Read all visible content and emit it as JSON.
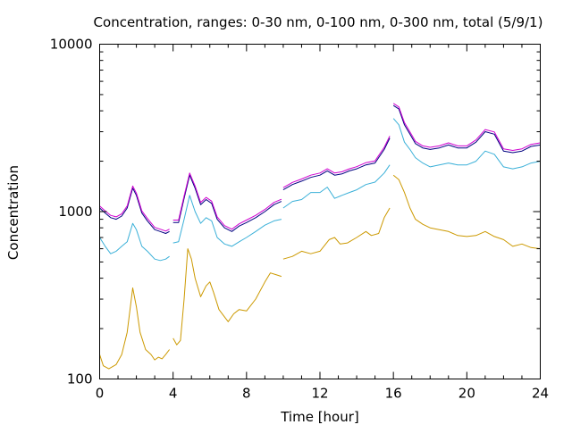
{
  "chart_data": {
    "type": "line",
    "title": "Concentration, ranges: 0-30 nm, 0-100 nm, 0-300 nm, total (5/9/1)",
    "xlabel": "Time [hour]",
    "ylabel": "Concentration",
    "xlim": [
      0,
      24
    ],
    "ylim": [
      100,
      10000
    ],
    "yscale": "log",
    "xticks": [
      0,
      4,
      8,
      12,
      16,
      20,
      24
    ],
    "xtick_labels": [
      "0",
      "4",
      "8",
      "12",
      "16",
      "20",
      "24"
    ],
    "yticks": [
      100,
      1000,
      10000
    ],
    "ytick_labels": [
      "100",
      "1000",
      "10000"
    ],
    "grid": false,
    "series": [
      {
        "color": "#cc9900",
        "segments": [
          [
            [
              0,
              140
            ],
            [
              0.2,
              120
            ],
            [
              0.5,
              115
            ],
            [
              0.9,
              122
            ],
            [
              1.2,
              140
            ],
            [
              1.5,
              190
            ],
            [
              1.8,
              350
            ],
            [
              2.0,
              270
            ],
            [
              2.2,
              190
            ],
            [
              2.5,
              150
            ],
            [
              2.8,
              140
            ],
            [
              3.0,
              130
            ],
            [
              3.2,
              135
            ],
            [
              3.4,
              132
            ],
            [
              3.6,
              140
            ],
            [
              3.8,
              150
            ]
          ],
          [
            [
              4.0,
              175
            ],
            [
              4.2,
              160
            ],
            [
              4.4,
              170
            ],
            [
              4.6,
              300
            ],
            [
              4.8,
              600
            ],
            [
              5.0,
              520
            ],
            [
              5.2,
              400
            ],
            [
              5.5,
              310
            ],
            [
              5.8,
              360
            ],
            [
              6.0,
              380
            ],
            [
              6.2,
              330
            ],
            [
              6.5,
              260
            ],
            [
              6.8,
              235
            ],
            [
              7.0,
              220
            ],
            [
              7.3,
              245
            ],
            [
              7.6,
              260
            ],
            [
              8.0,
              255
            ],
            [
              8.5,
              300
            ],
            [
              9.0,
              380
            ],
            [
              9.3,
              430
            ],
            [
              9.6,
              420
            ],
            [
              9.9,
              410
            ]
          ],
          [
            [
              10.0,
              520
            ],
            [
              10.5,
              540
            ],
            [
              11.0,
              580
            ],
            [
              11.5,
              560
            ],
            [
              12.0,
              580
            ],
            [
              12.5,
              680
            ],
            [
              12.8,
              700
            ],
            [
              13.1,
              640
            ],
            [
              13.5,
              650
            ],
            [
              14.0,
              700
            ],
            [
              14.5,
              760
            ],
            [
              14.8,
              720
            ],
            [
              15.2,
              740
            ],
            [
              15.5,
              920
            ],
            [
              15.8,
              1050
            ]
          ],
          [
            [
              16.0,
              1650
            ],
            [
              16.3,
              1550
            ],
            [
              16.6,
              1300
            ],
            [
              16.9,
              1050
            ],
            [
              17.2,
              900
            ],
            [
              17.6,
              840
            ],
            [
              18.0,
              800
            ],
            [
              18.5,
              780
            ],
            [
              19.0,
              760
            ],
            [
              19.5,
              720
            ],
            [
              20.0,
              710
            ],
            [
              20.5,
              720
            ],
            [
              21.0,
              760
            ],
            [
              21.5,
              710
            ],
            [
              22.0,
              680
            ],
            [
              22.5,
              620
            ],
            [
              23.0,
              640
            ],
            [
              23.5,
              610
            ],
            [
              24.0,
              600
            ]
          ]
        ]
      },
      {
        "color": "#3ab0d8",
        "segments": [
          [
            [
              0,
              700
            ],
            [
              0.3,
              620
            ],
            [
              0.6,
              560
            ],
            [
              0.9,
              580
            ],
            [
              1.2,
              620
            ],
            [
              1.5,
              660
            ],
            [
              1.8,
              850
            ],
            [
              2.0,
              780
            ],
            [
              2.3,
              620
            ],
            [
              2.6,
              580
            ],
            [
              3.0,
              520
            ],
            [
              3.3,
              510
            ],
            [
              3.6,
              520
            ],
            [
              3.8,
              540
            ]
          ],
          [
            [
              4.0,
              650
            ],
            [
              4.3,
              660
            ],
            [
              4.6,
              900
            ],
            [
              4.9,
              1250
            ],
            [
              5.2,
              1000
            ],
            [
              5.5,
              850
            ],
            [
              5.8,
              920
            ],
            [
              6.1,
              880
            ],
            [
              6.4,
              700
            ],
            [
              6.8,
              640
            ],
            [
              7.2,
              620
            ],
            [
              7.6,
              660
            ],
            [
              8.0,
              700
            ],
            [
              8.5,
              760
            ],
            [
              9.0,
              830
            ],
            [
              9.5,
              880
            ],
            [
              9.9,
              900
            ]
          ],
          [
            [
              10.0,
              1050
            ],
            [
              10.5,
              1150
            ],
            [
              11.0,
              1180
            ],
            [
              11.5,
              1300
            ],
            [
              12.0,
              1300
            ],
            [
              12.4,
              1400
            ],
            [
              12.8,
              1200
            ],
            [
              13.2,
              1250
            ],
            [
              13.6,
              1300
            ],
            [
              14.0,
              1350
            ],
            [
              14.5,
              1450
            ],
            [
              15.0,
              1500
            ],
            [
              15.5,
              1700
            ],
            [
              15.8,
              1900
            ]
          ],
          [
            [
              16.0,
              3600
            ],
            [
              16.3,
              3300
            ],
            [
              16.6,
              2600
            ],
            [
              16.9,
              2350
            ],
            [
              17.2,
              2100
            ],
            [
              17.6,
              1950
            ],
            [
              18.0,
              1850
            ],
            [
              18.5,
              1900
            ],
            [
              19.0,
              1950
            ],
            [
              19.5,
              1900
            ],
            [
              20.0,
              1900
            ],
            [
              20.5,
              2000
            ],
            [
              21.0,
              2300
            ],
            [
              21.5,
              2200
            ],
            [
              22.0,
              1850
            ],
            [
              22.5,
              1800
            ],
            [
              23.0,
              1850
            ],
            [
              23.5,
              1950
            ],
            [
              24.0,
              2000
            ]
          ]
        ]
      },
      {
        "color": "#000080",
        "segments": [
          [
            [
              0,
              1050
            ],
            [
              0.3,
              980
            ],
            [
              0.6,
              920
            ],
            [
              0.9,
              900
            ],
            [
              1.2,
              940
            ],
            [
              1.5,
              1050
            ],
            [
              1.8,
              1380
            ],
            [
              2.0,
              1250
            ],
            [
              2.3,
              980
            ],
            [
              2.6,
              880
            ],
            [
              3.0,
              780
            ],
            [
              3.3,
              760
            ],
            [
              3.6,
              740
            ],
            [
              3.8,
              760
            ]
          ],
          [
            [
              4.0,
              860
            ],
            [
              4.3,
              860
            ],
            [
              4.6,
              1200
            ],
            [
              4.9,
              1650
            ],
            [
              5.2,
              1380
            ],
            [
              5.5,
              1100
            ],
            [
              5.8,
              1180
            ],
            [
              6.1,
              1120
            ],
            [
              6.4,
              900
            ],
            [
              6.8,
              800
            ],
            [
              7.2,
              760
            ],
            [
              7.6,
              820
            ],
            [
              8.0,
              860
            ],
            [
              8.5,
              920
            ],
            [
              9.0,
              1000
            ],
            [
              9.5,
              1100
            ],
            [
              9.9,
              1150
            ]
          ],
          [
            [
              10.0,
              1350
            ],
            [
              10.5,
              1450
            ],
            [
              11.0,
              1520
            ],
            [
              11.5,
              1600
            ],
            [
              12.0,
              1650
            ],
            [
              12.4,
              1750
            ],
            [
              12.8,
              1650
            ],
            [
              13.2,
              1680
            ],
            [
              13.6,
              1750
            ],
            [
              14.0,
              1800
            ],
            [
              14.5,
              1900
            ],
            [
              15.0,
              1950
            ],
            [
              15.5,
              2350
            ],
            [
              15.8,
              2750
            ]
          ],
          [
            [
              16.0,
              4300
            ],
            [
              16.3,
              4100
            ],
            [
              16.6,
              3300
            ],
            [
              16.9,
              2900
            ],
            [
              17.2,
              2550
            ],
            [
              17.6,
              2400
            ],
            [
              18.0,
              2350
            ],
            [
              18.5,
              2400
            ],
            [
              19.0,
              2500
            ],
            [
              19.5,
              2400
            ],
            [
              20.0,
              2400
            ],
            [
              20.5,
              2600
            ],
            [
              21.0,
              3000
            ],
            [
              21.5,
              2900
            ],
            [
              22.0,
              2300
            ],
            [
              22.5,
              2250
            ],
            [
              23.0,
              2300
            ],
            [
              23.5,
              2450
            ],
            [
              24.0,
              2500
            ]
          ]
        ]
      },
      {
        "color": "#d000d0",
        "segments": [
          [
            [
              0,
              1080
            ],
            [
              0.3,
              1010
            ],
            [
              0.6,
              950
            ],
            [
              0.9,
              930
            ],
            [
              1.2,
              970
            ],
            [
              1.5,
              1080
            ],
            [
              1.8,
              1420
            ],
            [
              2.0,
              1290
            ],
            [
              2.3,
              1010
            ],
            [
              2.6,
              910
            ],
            [
              3.0,
              805
            ],
            [
              3.3,
              785
            ],
            [
              3.6,
              765
            ],
            [
              3.8,
              785
            ]
          ],
          [
            [
              4.0,
              890
            ],
            [
              4.3,
              890
            ],
            [
              4.6,
              1240
            ],
            [
              4.9,
              1700
            ],
            [
              5.2,
              1420
            ],
            [
              5.5,
              1135
            ],
            [
              5.8,
              1215
            ],
            [
              6.1,
              1155
            ],
            [
              6.4,
              930
            ],
            [
              6.8,
              825
            ],
            [
              7.2,
              785
            ],
            [
              7.6,
              845
            ],
            [
              8.0,
              890
            ],
            [
              8.5,
              950
            ],
            [
              9.0,
              1030
            ],
            [
              9.5,
              1135
            ],
            [
              9.9,
              1185
            ]
          ],
          [
            [
              10.0,
              1390
            ],
            [
              10.5,
              1495
            ],
            [
              11.0,
              1565
            ],
            [
              11.5,
              1650
            ],
            [
              12.0,
              1700
            ],
            [
              12.4,
              1800
            ],
            [
              12.8,
              1700
            ],
            [
              13.2,
              1730
            ],
            [
              13.6,
              1800
            ],
            [
              14.0,
              1855
            ],
            [
              14.5,
              1960
            ],
            [
              15.0,
              2010
            ],
            [
              15.5,
              2420
            ],
            [
              15.8,
              2830
            ]
          ],
          [
            [
              16.0,
              4430
            ],
            [
              16.3,
              4220
            ],
            [
              16.6,
              3400
            ],
            [
              16.9,
              2990
            ],
            [
              17.2,
              2630
            ],
            [
              17.6,
              2470
            ],
            [
              18.0,
              2420
            ],
            [
              18.5,
              2470
            ],
            [
              19.0,
              2575
            ],
            [
              19.5,
              2470
            ],
            [
              20.0,
              2470
            ],
            [
              20.5,
              2680
            ],
            [
              21.0,
              3090
            ],
            [
              21.5,
              2990
            ],
            [
              22.0,
              2370
            ],
            [
              22.5,
              2320
            ],
            [
              23.0,
              2370
            ],
            [
              23.5,
              2520
            ],
            [
              24.0,
              2575
            ]
          ]
        ]
      }
    ]
  }
}
